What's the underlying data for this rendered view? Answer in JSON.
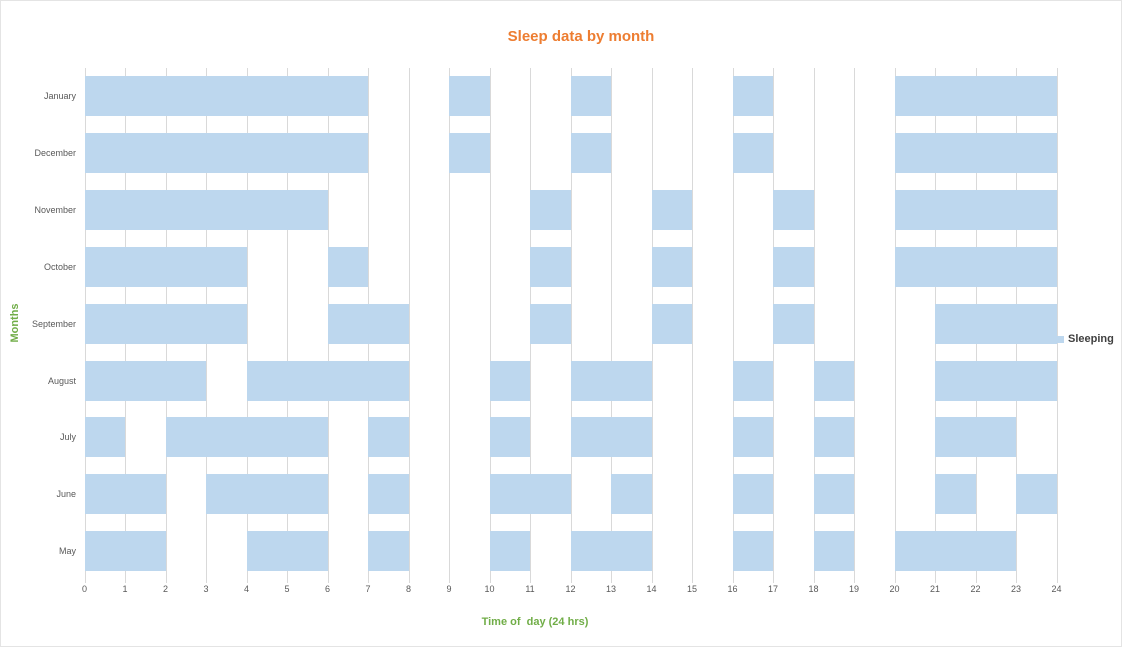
{
  "title": {
    "text": "Sleep data by month"
  },
  "axes": {
    "x_title": "Time of  day (24 hrs)",
    "y_title": "Months",
    "x_ticks": [
      0,
      1,
      2,
      3,
      4,
      5,
      6,
      7,
      8,
      9,
      10,
      11,
      12,
      13,
      14,
      15,
      16,
      17,
      18,
      19,
      20,
      21,
      22,
      23,
      24
    ],
    "y_categories": [
      "January",
      "December",
      "November",
      "October",
      "September",
      "August",
      "July",
      "June",
      "May"
    ]
  },
  "legend": {
    "label": "Sleeping"
  },
  "colors": {
    "bar_fill": "#BDD7EE",
    "gridline": "#D9D9D9",
    "tick_label": "#595959",
    "title": "#ED7D31",
    "axis_title": "#70AD47",
    "legend_text": "#404040"
  },
  "chart_data": {
    "type": "bar",
    "subtype": "gantt-horizontal",
    "title": "Sleep data by month",
    "xlabel": "Time of  day (24 hrs)",
    "ylabel": "Months",
    "xlim": [
      0,
      24
    ],
    "x_tick_interval": 1,
    "grid": true,
    "legend_position": "right",
    "categories": [
      "January",
      "December",
      "November",
      "October",
      "September",
      "August",
      "July",
      "June",
      "May"
    ],
    "series": [
      {
        "name": "Sleeping",
        "segments_hours": [
          [
            [
              0,
              7
            ],
            [
              9,
              10
            ],
            [
              12,
              13
            ],
            [
              16,
              17
            ],
            [
              20,
              24
            ]
          ],
          [
            [
              0,
              7
            ],
            [
              9,
              10
            ],
            [
              12,
              13
            ],
            [
              16,
              17
            ],
            [
              20,
              24
            ]
          ],
          [
            [
              0,
              6
            ],
            [
              11,
              12
            ],
            [
              14,
              15
            ],
            [
              17,
              18
            ],
            [
              20,
              24
            ]
          ],
          [
            [
              0,
              4
            ],
            [
              6,
              7
            ],
            [
              11,
              12
            ],
            [
              14,
              15
            ],
            [
              17,
              18
            ],
            [
              20,
              24
            ]
          ],
          [
            [
              0,
              4
            ],
            [
              6,
              8
            ],
            [
              11,
              12
            ],
            [
              14,
              15
            ],
            [
              17,
              18
            ],
            [
              21,
              24
            ]
          ],
          [
            [
              0,
              3
            ],
            [
              4,
              8
            ],
            [
              10,
              11
            ],
            [
              12,
              14
            ],
            [
              16,
              17
            ],
            [
              18,
              19
            ],
            [
              21,
              24
            ]
          ],
          [
            [
              0,
              1
            ],
            [
              2,
              6
            ],
            [
              7,
              8
            ],
            [
              10,
              11
            ],
            [
              12,
              14
            ],
            [
              16,
              17
            ],
            [
              18,
              19
            ],
            [
              21,
              23
            ]
          ],
          [
            [
              0,
              2
            ],
            [
              3,
              6
            ],
            [
              7,
              8
            ],
            [
              10,
              12
            ],
            [
              13,
              14
            ],
            [
              16,
              17
            ],
            [
              18,
              19
            ],
            [
              21,
              22
            ],
            [
              23,
              24
            ]
          ],
          [
            [
              0,
              2
            ],
            [
              4,
              6
            ],
            [
              7,
              8
            ],
            [
              10,
              11
            ],
            [
              12,
              14
            ],
            [
              16,
              17
            ],
            [
              18,
              19
            ],
            [
              20,
              23
            ]
          ]
        ],
        "total_hours_per_month": [
          14,
          14,
          13,
          12,
          12,
          15,
          13,
          13,
          13
        ]
      }
    ]
  }
}
